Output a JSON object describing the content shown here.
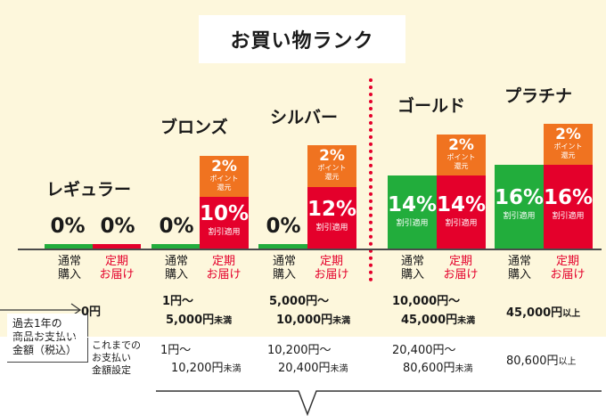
{
  "title": "お買い物ランク",
  "labels": {
    "tsujo": "通常\n購入",
    "teiki": "定期\nお届け"
  },
  "ranks": [
    {
      "name": "レギュラー",
      "tsujo": "0%",
      "teiki": "0%"
    },
    {
      "name": "ブロンズ",
      "tsujo": "0%",
      "teiki_pct": "10%",
      "teiki_sub": "割引適用",
      "bonus_pct": "2%",
      "bonus_sub1": "ポイント",
      "bonus_sub2": "還元"
    },
    {
      "name": "シルバー",
      "tsujo": "0%",
      "teiki_pct": "12%",
      "teiki_sub": "割引適用",
      "bonus_pct": "2%",
      "bonus_sub1": "ポイント",
      "bonus_sub2": "還元"
    },
    {
      "name": "ゴールド",
      "tsujo_pct": "14%",
      "tsujo_sub": "割引適用",
      "teiki_pct": "14%",
      "teiki_sub": "割引適用",
      "bonus_pct": "2%",
      "bonus_sub1": "ポイント",
      "bonus_sub2": "還元"
    },
    {
      "name": "プラチナ",
      "tsujo_pct": "16%",
      "tsujo_sub": "割引適用",
      "teiki_pct": "16%",
      "teiki_sub": "割引適用",
      "bonus_pct": "2%",
      "bonus_sub1": "ポイント",
      "bonus_sub2": "還元"
    }
  ],
  "past_year_label": "過去1年の\n商品お支払い\n金額（税込）",
  "total_label": "これまでの\nお支払い\n金額設定",
  "past_year": [
    {
      "l1": "0円",
      "l2": ""
    },
    {
      "l1": "1円～",
      "l2": "5,000円",
      "l2s": "未満"
    },
    {
      "l1": "5,000円～",
      "l2": "10,000円",
      "l2s": "未満"
    },
    {
      "l1": "10,000円～",
      "l2": "45,000円",
      "l2s": "未満"
    },
    {
      "l1": "45,000円",
      "l1s": "以上"
    }
  ],
  "total": [
    {
      "l1": "1円～",
      "l2": "10,200円",
      "l2s": "未満"
    },
    {
      "l1": "10,200円～",
      "l2": "20,400円",
      "l2s": "未満"
    },
    {
      "l1": "20,400円～",
      "l2": "80,600円",
      "l2s": "未満"
    },
    {
      "l1": "80,600円",
      "l1s": "以上"
    }
  ],
  "colors": {
    "green": "#22ad3c",
    "red": "#e4002b",
    "orange": "#f07320",
    "bg": "#fdf7dc"
  }
}
